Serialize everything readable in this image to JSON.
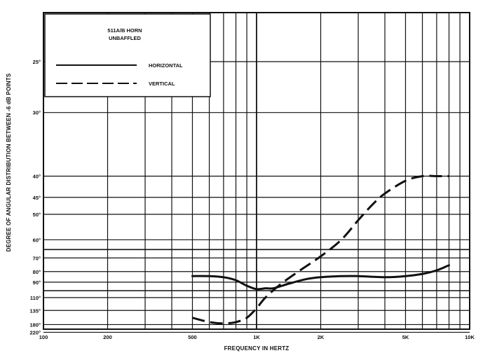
{
  "chart_data": {
    "type": "line",
    "title": "511A/B HORN",
    "subtitle": "UNBAFFLED",
    "xlabel": "FREQUENCY IN HERTZ",
    "ylabel": "DEGREE OF ANGULAR DISTRIBUTION BETWEEN -6 dB POINTS",
    "x_scale": "log",
    "xlim": [
      100,
      10000
    ],
    "x_ticks": [
      {
        "value": 100,
        "label": "100"
      },
      {
        "value": 200,
        "label": "200"
      },
      {
        "value": 500,
        "label": "500"
      },
      {
        "value": 1000,
        "label": "1K"
      },
      {
        "value": 2000,
        "label": "2K"
      },
      {
        "value": 5000,
        "label": "5K"
      },
      {
        "value": 10000,
        "label": "10K"
      }
    ],
    "y_scale": "reciprocal",
    "ylim": [
      20,
      300
    ],
    "y_ticks": [
      {
        "value": 25,
        "label": "25°"
      },
      {
        "value": 30,
        "label": "30°"
      },
      {
        "value": 40,
        "label": "40°"
      },
      {
        "value": 45,
        "label": "45°"
      },
      {
        "value": 50,
        "label": "50°"
      },
      {
        "value": 60,
        "label": "60°"
      },
      {
        "value": 70,
        "label": "70°"
      },
      {
        "value": 80,
        "label": "80°"
      },
      {
        "value": 90,
        "label": "90°"
      },
      {
        "value": 110,
        "label": "110°"
      },
      {
        "value": 135,
        "label": "135°"
      },
      {
        "value": 180,
        "label": "180°"
      },
      {
        "value": 220,
        "label": "220°"
      }
    ],
    "grid": true,
    "legend_position": "top-left",
    "series": [
      {
        "name": "HORIZONTAL",
        "style": "solid",
        "x": [
          500,
          600,
          700,
          800,
          900,
          1000,
          1100,
          1200,
          1400,
          1700,
          2000,
          2500,
          3000,
          4000,
          5000,
          6000,
          7000,
          8000
        ],
        "y": [
          84,
          84,
          85,
          88,
          94,
          98,
          97,
          97,
          92,
          87,
          85,
          84,
          84,
          85,
          84,
          82,
          79,
          75
        ]
      },
      {
        "name": "VERTICAL",
        "style": "dashed",
        "x": [
          500,
          600,
          700,
          800,
          900,
          1000,
          1100,
          1300,
          1600,
          2000,
          2500,
          3000,
          3500,
          4000,
          5000,
          6000,
          7000,
          8000
        ],
        "y": [
          155,
          170,
          175,
          170,
          155,
          130,
          110,
          92,
          79,
          69,
          60,
          52,
          47,
          44,
          41,
          40,
          40,
          40
        ]
      }
    ]
  }
}
